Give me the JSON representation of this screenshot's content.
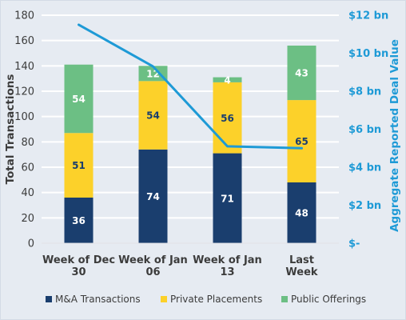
{
  "chart_data": {
    "type": "bar",
    "stacked": true,
    "categories": [
      [
        "Week of Dec",
        "30"
      ],
      [
        "Week of Jan",
        "06"
      ],
      [
        "Week of Jan",
        "13"
      ],
      [
        "Last",
        "Week"
      ]
    ],
    "series": [
      {
        "name": "M&A Transactions",
        "values": [
          36,
          74,
          71,
          48
        ],
        "color": "#1a3e6e",
        "label_color": "#ffffff"
      },
      {
        "name": "Private Placements",
        "values": [
          51,
          54,
          56,
          65
        ],
        "color": "#fcd12a",
        "label_color": "#1a3e6e"
      },
      {
        "name": "Public Offerings",
        "values": [
          54,
          12,
          4,
          43
        ],
        "color": "#6cbf84",
        "label_color": "#ffffff"
      }
    ],
    "line": {
      "values": [
        11.5,
        9.3,
        5.1,
        5.0
      ],
      "color": "#1e9ad6",
      "axis": "right"
    },
    "ylabel": "Total Transactions",
    "ylabel_right": "Aggregate Reported Deal Value",
    "ylim": [
      0,
      180
    ],
    "ytick_step": 20,
    "y_ticks_left": [
      "0",
      "20",
      "40",
      "60",
      "80",
      "100",
      "120",
      "140",
      "160",
      "180"
    ],
    "ylim_right": [
      0,
      12
    ],
    "y_ticks_right": [
      "$-",
      "$2 bn",
      "$4 bn",
      "$6 bn",
      "$8 bn",
      "$10 bn",
      "$12 bn"
    ],
    "grid": true,
    "legend_position": "bottom",
    "text_color": "#3c3c3c",
    "grid_color": "#ffffff",
    "background": "#e6ebf2"
  }
}
